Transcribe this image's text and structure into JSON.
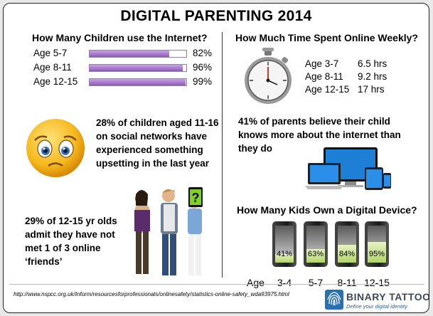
{
  "title": "DIGITAL PARENTING 2014",
  "internet_use": {
    "heading": "How Many Children use the Internet?",
    "rows": [
      {
        "label": "Age 5-7",
        "value": 82,
        "display": "82%"
      },
      {
        "label": "Age 8-11",
        "value": 96,
        "display": "96%"
      },
      {
        "label": "Age 12-15",
        "value": 99,
        "display": "99%"
      }
    ]
  },
  "time_online": {
    "heading": "How Much Time Spent Online Weekly?",
    "rows": [
      {
        "label": "Age 3-7",
        "value": "6.5 hrs"
      },
      {
        "label": "Age 8-11",
        "value": "9.2 hrs"
      },
      {
        "label": "Age 12-15",
        "value": "17 hrs"
      }
    ]
  },
  "facts": {
    "social_networks": "28% of children aged 11-16 on social networks have experienced something upsetting in the last year",
    "parents_believe": "41% of parents believe their child knows more about the internet than they do",
    "online_friends": "29% of 12-15 yr olds admit they have not met 1 of 3 online ‘friends’"
  },
  "device_ownership": {
    "heading": "How Many Kids Own a Digital Device?",
    "age_label": "Age",
    "groups": [
      {
        "age": "3-4",
        "value": 41,
        "display": "41%"
      },
      {
        "age": "5-7",
        "value": 63,
        "display": "63%"
      },
      {
        "age": "8-11",
        "value": 84,
        "display": "84%"
      },
      {
        "age": "12-15",
        "value": 95,
        "display": "95%"
      }
    ]
  },
  "chart_data": [
    {
      "type": "bar",
      "title": "How Many Children use the Internet?",
      "categories": [
        "Age 5-7",
        "Age 8-11",
        "Age 12-15"
      ],
      "values": [
        82,
        96,
        99
      ],
      "ylim": [
        0,
        100
      ]
    },
    {
      "type": "table",
      "title": "How Much Time Spent Online Weekly?",
      "categories": [
        "Age 3-7",
        "Age 8-11",
        "Age 12-15"
      ],
      "values": [
        "6.5 hrs",
        "9.2 hrs",
        "17 hrs"
      ]
    },
    {
      "type": "bar",
      "title": "How Many Kids Own a Digital Device?",
      "categories": [
        "3-4",
        "5-7",
        "8-11",
        "12-15"
      ],
      "values": [
        41,
        63,
        84,
        95
      ],
      "xlabel": "Age",
      "ylim": [
        0,
        100
      ]
    }
  ],
  "source_url": "http://www.nspcc.org.uk/Inform/resourcesforprofessionals/onlinesafety/statistics-online-safety_wda93975.html",
  "logo": {
    "name": "BINARY TATTOO",
    "tagline": "Define your digital identity"
  },
  "icons": {
    "stopwatch": "stopwatch-icon",
    "sad_face": "sad-face-icon",
    "devices": "devices-icon",
    "teens": "teenagers-illustration",
    "logo": "fingerprint-logo-icon"
  },
  "colors": {
    "internet_bar": "#9b6cc4",
    "device_fill": "#b2d46a",
    "emoji": "#f5b81c"
  }
}
